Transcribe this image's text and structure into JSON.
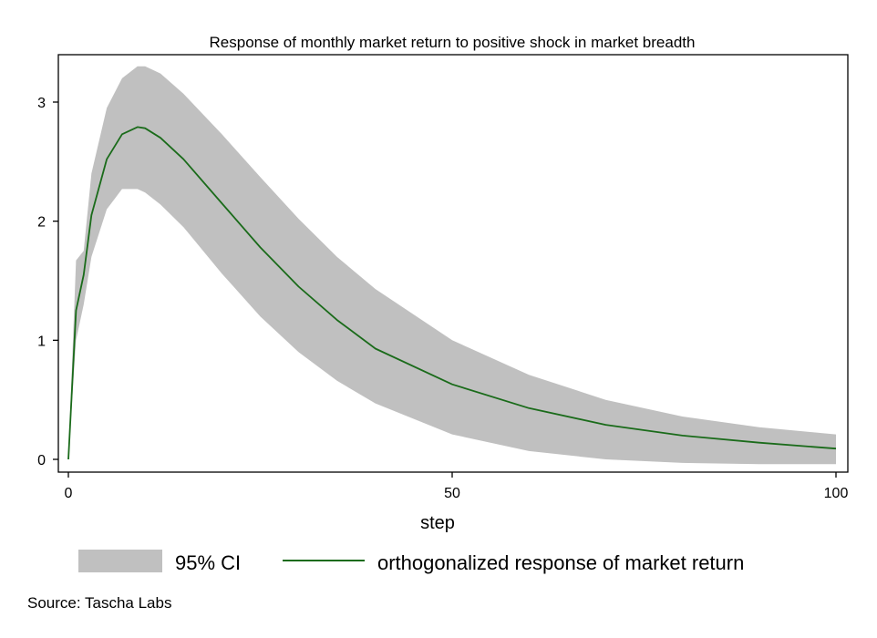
{
  "chart_data": {
    "type": "line",
    "title": "Response of monthly market return to positive shock in market breadth",
    "xlabel": "step",
    "ylabel": "",
    "xlim": [
      0,
      100
    ],
    "ylim": [
      -0.12,
      3.35
    ],
    "xticks": [
      0,
      50,
      100
    ],
    "yticks": [
      0,
      1,
      2,
      3
    ],
    "grid": false,
    "legend_position": "bottom",
    "series": [
      {
        "name": "orthogonalized response of market return",
        "kind": "line",
        "color": "#1a6b1a",
        "x": [
          0,
          1,
          2,
          3,
          5,
          7,
          9,
          10,
          12,
          15,
          20,
          25,
          30,
          35,
          40,
          50,
          60,
          70,
          80,
          90,
          100
        ],
        "values": [
          0,
          1.25,
          1.55,
          2.05,
          2.52,
          2.73,
          2.79,
          2.78,
          2.7,
          2.52,
          2.15,
          1.78,
          1.45,
          1.17,
          0.93,
          0.63,
          0.43,
          0.29,
          0.2,
          0.14,
          0.09
        ]
      },
      {
        "name": "95% CI",
        "kind": "band",
        "color": "#c0c0c0",
        "x": [
          0,
          1,
          2,
          3,
          5,
          7,
          9,
          10,
          12,
          15,
          20,
          25,
          30,
          35,
          40,
          50,
          60,
          70,
          80,
          90,
          100
        ],
        "upper": [
          0,
          1.67,
          1.75,
          2.4,
          2.95,
          3.2,
          3.3,
          3.3,
          3.24,
          3.07,
          2.73,
          2.37,
          2.02,
          1.7,
          1.43,
          1.0,
          0.71,
          0.5,
          0.36,
          0.27,
          0.21
        ],
        "lower": [
          0,
          1.0,
          1.3,
          1.7,
          2.1,
          2.27,
          2.27,
          2.24,
          2.14,
          1.95,
          1.56,
          1.2,
          0.9,
          0.66,
          0.47,
          0.21,
          0.07,
          0.0,
          -0.03,
          -0.04,
          -0.04
        ]
      }
    ]
  },
  "legend": {
    "ci_label": "95% CI",
    "line_label": "orthogonalized response of market return"
  },
  "source": "Source: Tascha Labs"
}
